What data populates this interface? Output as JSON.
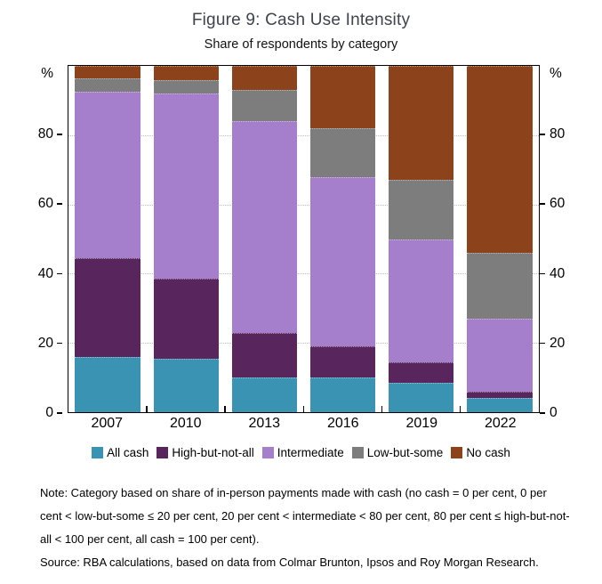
{
  "figure": {
    "title": "Figure 9: Cash Use Intensity",
    "subtitle": "Share of respondents by category",
    "note": "Note: Category based on share of in-person payments made with cash (no cash = 0 per cent, 0 per cent < low-but-some ≤ 20 per cent, 20 per cent < intermediate < 80 per cent, 80 per cent ≤ high-but-not-all < 100 per cent, all cash = 100 per cent).",
    "source": "Source: RBA calculations, based on data from Colmar Brunton, Ipsos and Roy Morgan Research."
  },
  "chart_data": {
    "type": "bar",
    "stacked": true,
    "title": "Figure 9: Cash Use Intensity",
    "subtitle": "Share of respondents by category",
    "unit": "per cent of respondents",
    "categories": [
      "2007",
      "2010",
      "2013",
      "2016",
      "2019",
      "2022"
    ],
    "series": [
      {
        "name": "All cash",
        "color": "#3B93B4",
        "values": [
          16,
          15.5,
          10,
          10,
          8.5,
          4
        ]
      },
      {
        "name": "High-but-not-all",
        "color": "#58255C",
        "values": [
          28.5,
          23,
          13,
          9,
          6,
          2
        ]
      },
      {
        "name": "Intermediate",
        "color": "#A57FCB",
        "values": [
          48,
          53.5,
          61,
          49,
          35.5,
          21
        ]
      },
      {
        "name": "Low-but-some",
        "color": "#7D7D7D",
        "values": [
          4,
          4,
          9,
          14,
          17,
          19
        ]
      },
      {
        "name": "No cash",
        "color": "#8C431C",
        "values": [
          3.5,
          4,
          7,
          18,
          33,
          54
        ]
      }
    ],
    "ylim": [
      0,
      100
    ],
    "yticks": [
      0,
      20,
      40,
      60,
      80
    ],
    "ylabel_left": "%",
    "ylabel_right": "%",
    "grid": "horizontal dotted lines at 20, 40, 60, 80",
    "legend_position": "bottom"
  },
  "colors": {
    "title_text": "#3F434C",
    "axis": "#000000",
    "gridline": "#BDBDBD"
  }
}
